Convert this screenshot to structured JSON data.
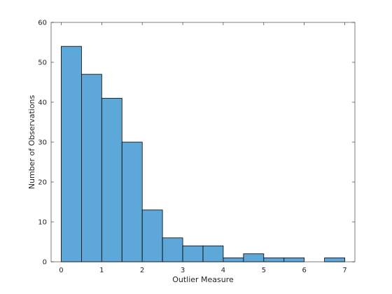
{
  "chart_data": {
    "type": "bar",
    "subtype": "histogram",
    "xlabel": "Outlier Measure",
    "ylabel": "Number of Observations",
    "xlim": [
      -0.25,
      7.25
    ],
    "ylim": [
      0,
      60
    ],
    "xticks": [
      0,
      1,
      2,
      3,
      4,
      5,
      6,
      7
    ],
    "yticks": [
      0,
      10,
      20,
      30,
      40,
      50,
      60
    ],
    "bin_width": 0.5,
    "bins": [
      {
        "start": 0.0,
        "end": 0.5,
        "count": 54
      },
      {
        "start": 0.5,
        "end": 1.0,
        "count": 47
      },
      {
        "start": 1.0,
        "end": 1.5,
        "count": 41
      },
      {
        "start": 1.5,
        "end": 2.0,
        "count": 30
      },
      {
        "start": 2.0,
        "end": 2.5,
        "count": 13
      },
      {
        "start": 2.5,
        "end": 3.0,
        "count": 6
      },
      {
        "start": 3.0,
        "end": 3.5,
        "count": 4
      },
      {
        "start": 3.5,
        "end": 4.0,
        "count": 4
      },
      {
        "start": 4.0,
        "end": 4.5,
        "count": 1
      },
      {
        "start": 4.5,
        "end": 5.0,
        "count": 2
      },
      {
        "start": 5.0,
        "end": 5.5,
        "count": 1
      },
      {
        "start": 5.5,
        "end": 6.0,
        "count": 1
      },
      {
        "start": 6.5,
        "end": 7.0,
        "count": 1
      }
    ],
    "grid": false,
    "box": true,
    "colors": {
      "bar_fill": "#5ea7d9",
      "bar_edge": "#000000",
      "axis": "#262626"
    }
  }
}
